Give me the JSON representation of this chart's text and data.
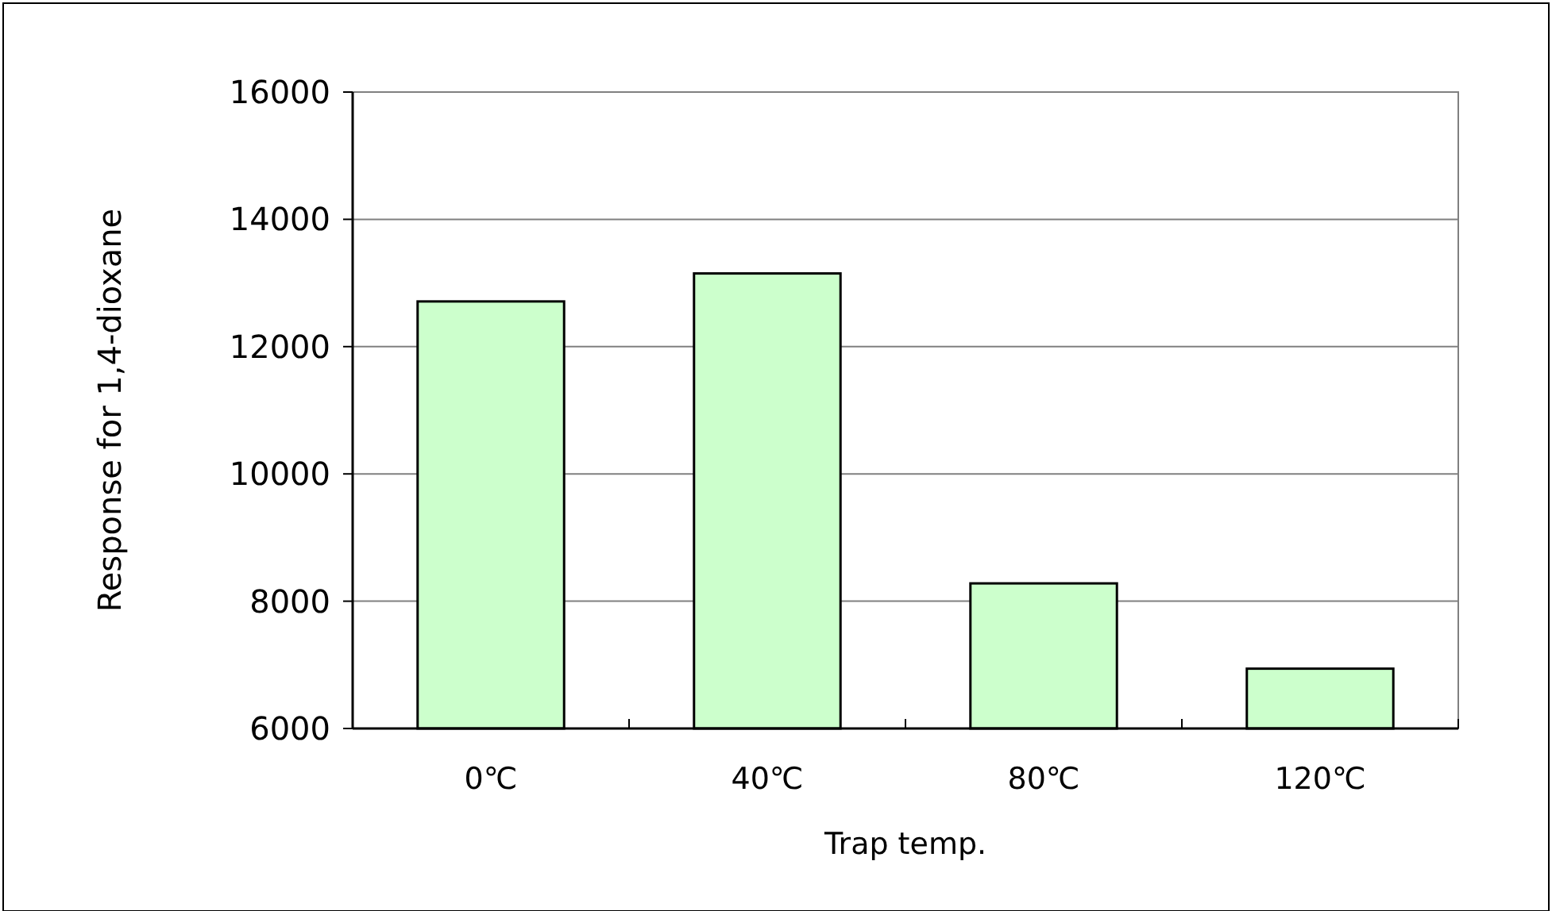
{
  "chart_data": {
    "type": "bar",
    "xlabel": "Trap temp.",
    "ylabel": "Response for 1,4-dioxane",
    "categories": [
      "0℃",
      "40℃",
      "80℃",
      "120℃"
    ],
    "values": [
      12710,
      13150,
      8280,
      6940
    ],
    "color": "#ccffcc",
    "ylim": [
      6000,
      16000
    ],
    "yticks": [
      6000,
      8000,
      10000,
      12000,
      14000,
      16000
    ],
    "grid": "y"
  }
}
